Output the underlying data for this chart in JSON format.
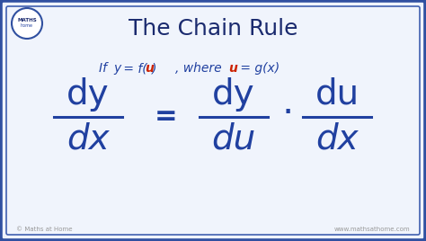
{
  "title": "The Chain Rule",
  "title_color": "#1a2a6e",
  "title_fontsize": 18,
  "bg_color": "#e8eef8",
  "bg_inner": "#f0f4fc",
  "border_color_outer": "#3050a0",
  "border_color_inner": "#4060b0",
  "subtitle_blue": "#2040a0",
  "subtitle_red": "#cc2200",
  "formula_color": "#2040a0",
  "footer_left": "© Maths at Home",
  "footer_right": "www.mathsathome.com"
}
